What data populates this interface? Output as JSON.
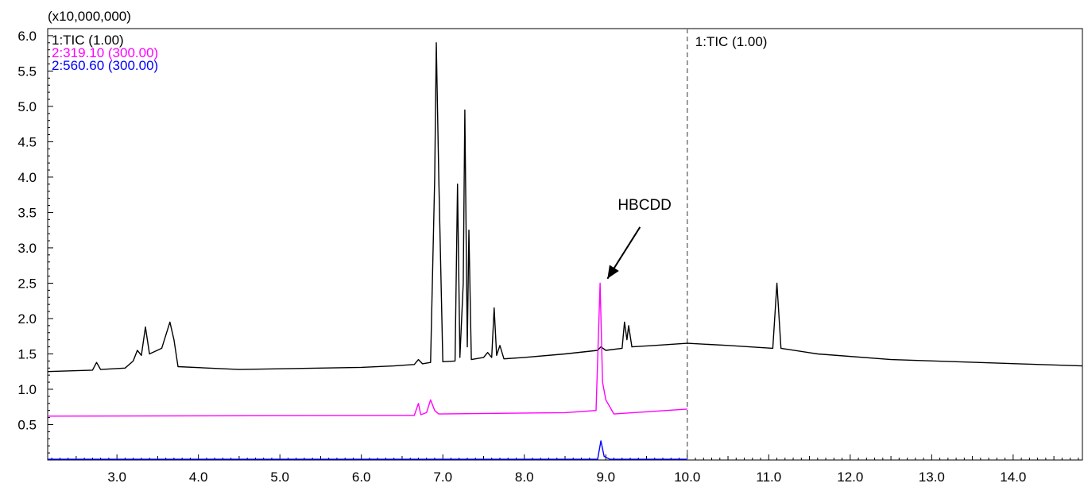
{
  "chart_data": {
    "type": "line",
    "title": "",
    "xlabel": "",
    "ylabel": "",
    "y_multiplier_label": "(x10,000,000)",
    "xlim": [
      2.15,
      14.85
    ],
    "ylim": [
      0.0,
      6.1
    ],
    "x_tick_labels": [
      "3.0",
      "4.0",
      "5.0",
      "6.0",
      "7.0",
      "8.0",
      "9.0",
      "10.0",
      "11.0",
      "12.0",
      "13.0",
      "14.0"
    ],
    "y_tick_labels": [
      "0.5",
      "1.0",
      "1.5",
      "2.0",
      "2.5",
      "3.0",
      "3.5",
      "4.0",
      "4.5",
      "5.0",
      "5.5",
      "6.0"
    ],
    "divider_x": 10.0,
    "divider_label": "1:TIC (1.00)",
    "grid": false,
    "legend_position": "top-left",
    "series": [
      {
        "name": "1:TIC (1.00)",
        "color": "#000000",
        "points": [
          [
            2.15,
            1.25
          ],
          [
            2.7,
            1.27
          ],
          [
            2.75,
            1.38
          ],
          [
            2.8,
            1.28
          ],
          [
            3.1,
            1.3
          ],
          [
            3.2,
            1.4
          ],
          [
            3.25,
            1.55
          ],
          [
            3.3,
            1.48
          ],
          [
            3.35,
            1.88
          ],
          [
            3.4,
            1.5
          ],
          [
            3.55,
            1.58
          ],
          [
            3.65,
            1.95
          ],
          [
            3.7,
            1.7
          ],
          [
            3.75,
            1.32
          ],
          [
            4.5,
            1.28
          ],
          [
            5.0,
            1.29
          ],
          [
            6.0,
            1.31
          ],
          [
            6.4,
            1.33
          ],
          [
            6.65,
            1.35
          ],
          [
            6.7,
            1.42
          ],
          [
            6.75,
            1.36
          ],
          [
            6.85,
            1.38
          ],
          [
            6.9,
            4.0
          ],
          [
            6.92,
            5.9
          ],
          [
            6.95,
            4.0
          ],
          [
            7.0,
            1.39
          ],
          [
            7.15,
            1.4
          ],
          [
            7.18,
            3.9
          ],
          [
            7.21,
            1.45
          ],
          [
            7.25,
            2.5
          ],
          [
            7.27,
            4.95
          ],
          [
            7.3,
            1.6
          ],
          [
            7.32,
            3.25
          ],
          [
            7.35,
            1.42
          ],
          [
            7.5,
            1.45
          ],
          [
            7.55,
            1.52
          ],
          [
            7.6,
            1.45
          ],
          [
            7.63,
            2.15
          ],
          [
            7.66,
            1.48
          ],
          [
            7.7,
            1.62
          ],
          [
            7.75,
            1.43
          ],
          [
            8.0,
            1.45
          ],
          [
            8.5,
            1.5
          ],
          [
            8.9,
            1.55
          ],
          [
            8.94,
            1.6
          ],
          [
            9.0,
            1.55
          ],
          [
            9.2,
            1.58
          ],
          [
            9.23,
            1.95
          ],
          [
            9.26,
            1.7
          ],
          [
            9.28,
            1.9
          ],
          [
            9.32,
            1.6
          ],
          [
            9.6,
            1.62
          ],
          [
            10.0,
            1.65
          ],
          [
            10.5,
            1.62
          ],
          [
            11.05,
            1.58
          ],
          [
            11.1,
            2.5
          ],
          [
            11.15,
            1.58
          ],
          [
            11.6,
            1.5
          ],
          [
            12.5,
            1.42
          ],
          [
            14.85,
            1.33
          ]
        ]
      },
      {
        "name": "2:319.10 (300.00)",
        "color": "#ff00ff",
        "points": [
          [
            2.15,
            0.62
          ],
          [
            6.65,
            0.63
          ],
          [
            6.7,
            0.8
          ],
          [
            6.73,
            0.64
          ],
          [
            6.8,
            0.67
          ],
          [
            6.85,
            0.85
          ],
          [
            6.9,
            0.7
          ],
          [
            6.95,
            0.65
          ],
          [
            8.5,
            0.67
          ],
          [
            8.88,
            0.7
          ],
          [
            8.93,
            2.5
          ],
          [
            8.96,
            1.1
          ],
          [
            9.0,
            0.85
          ],
          [
            9.1,
            0.65
          ],
          [
            10.0,
            0.72
          ]
        ]
      },
      {
        "name": "2:560.60 (300.00)",
        "color": "#0000ff",
        "points": [
          [
            2.15,
            0.01
          ],
          [
            8.9,
            0.01
          ],
          [
            8.94,
            0.27
          ],
          [
            8.98,
            0.05
          ],
          [
            9.05,
            0.01
          ],
          [
            10.0,
            0.01
          ]
        ]
      }
    ],
    "annotations": [
      {
        "text": "HBCDD",
        "x": 9.03,
        "y": 2.53,
        "points_to": "peak at 8.93"
      }
    ]
  }
}
